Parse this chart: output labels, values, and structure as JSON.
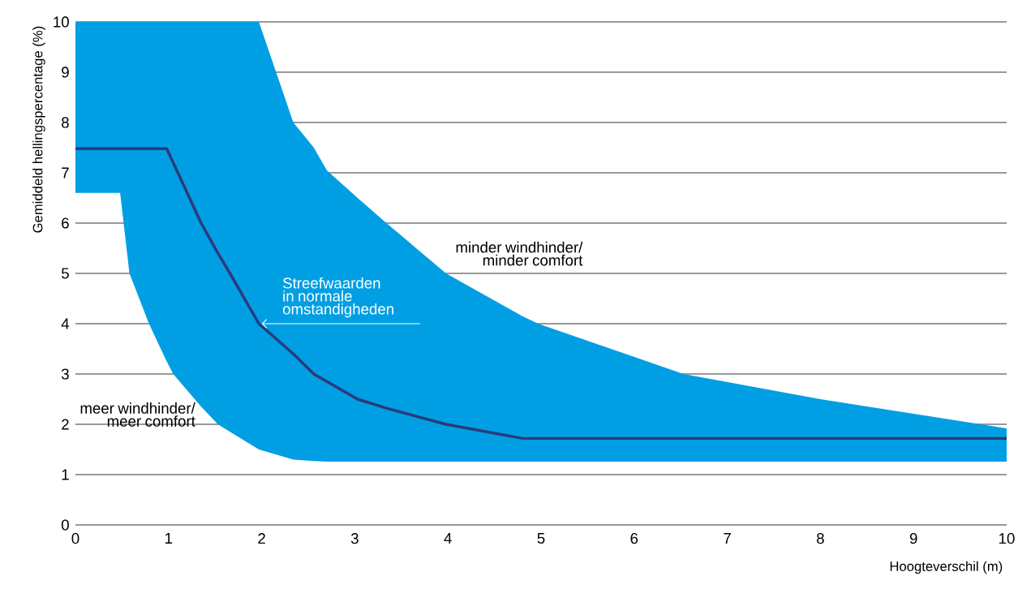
{
  "chart_data": {
    "type": "line",
    "xlabel": "Hoogteverschil (m)",
    "ylabel": "Gemiddeld hellingspercentage (%)",
    "xlim": [
      0,
      10
    ],
    "ylim": [
      0,
      10
    ],
    "xticks": [
      0,
      1,
      2,
      3,
      4,
      5,
      6,
      7,
      8,
      9,
      10
    ],
    "yticks": [
      0,
      1,
      2,
      3,
      4,
      5,
      6,
      7,
      8,
      9,
      10
    ],
    "grid": "y",
    "series": [
      {
        "color": "#2b3a7a",
        "x": [
          0,
          0.48,
          0.58,
          0.79,
          0.98,
          1.05,
          1.35,
          1.53,
          1.66,
          1.97,
          2.34,
          2.56,
          2.7,
          3.03,
          3.34,
          3.98,
          4.8,
          4.97,
          6.53,
          8,
          10
        ],
        "values": [
          7.48,
          7.48,
          7.48,
          7.48,
          7.48,
          7.2,
          6,
          5.4,
          5,
          4,
          3.4,
          3,
          2.85,
          2.5,
          2.32,
          2,
          1.72,
          1.72,
          1.72,
          1.72,
          1.72
        ],
        "lower": [
          6.6,
          6.6,
          5,
          4,
          3.25,
          3,
          2.35,
          2,
          1.85,
          1.5,
          1.3,
          1.27,
          1.26,
          1.26,
          1.26,
          1.26,
          1.26,
          1.26,
          1.26,
          1.26,
          1.26
        ],
        "upper": [
          10,
          10,
          10,
          10,
          10,
          10,
          10,
          10,
          10,
          10,
          8,
          7.5,
          7.05,
          6.5,
          6,
          5,
          4.15,
          4,
          3,
          2.5,
          1.92
        ]
      }
    ],
    "annotations": [
      {
        "text": "Streefwaarden in normale omstandigheden",
        "x": 2,
        "y": 4
      },
      "minder windhinder/ minder comfort",
      "meer windhinder/ meer comfort"
    ]
  }
}
